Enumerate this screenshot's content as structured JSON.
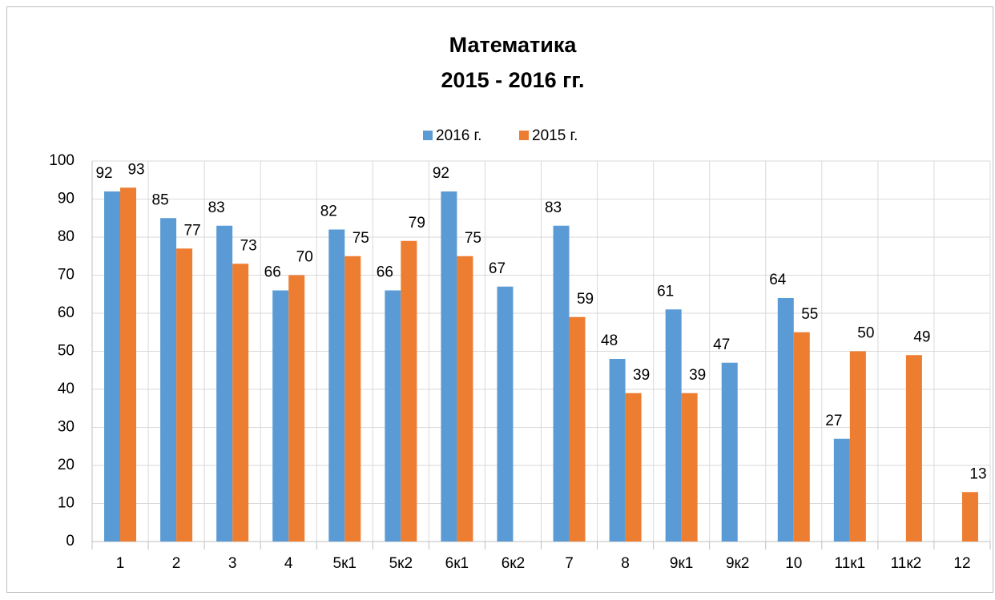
{
  "chart_data": {
    "type": "bar",
    "title": [
      "Математика",
      "2015 - 2016 гг."
    ],
    "categories": [
      "1",
      "2",
      "3",
      "4",
      "5к1",
      "5к2",
      "6к1",
      "6к2",
      "7",
      "8",
      "9к1",
      "9к2",
      "10",
      "11к1",
      "11к2",
      "12"
    ],
    "series": [
      {
        "name": "2016 г.",
        "color": "#5b9bd5",
        "values": [
          92,
          85,
          83,
          66,
          82,
          66,
          92,
          67,
          83,
          48,
          61,
          47,
          64,
          27,
          null,
          null
        ]
      },
      {
        "name": "2015 г.",
        "color": "#ed7d31",
        "values": [
          93,
          77,
          73,
          70,
          75,
          79,
          75,
          null,
          59,
          39,
          39,
          null,
          55,
          50,
          49,
          13
        ]
      }
    ],
    "ylim": [
      0,
      100
    ],
    "yticks": [
      0,
      10,
      20,
      30,
      40,
      50,
      60,
      70,
      80,
      90,
      100
    ],
    "grid": true,
    "legend": "top"
  }
}
